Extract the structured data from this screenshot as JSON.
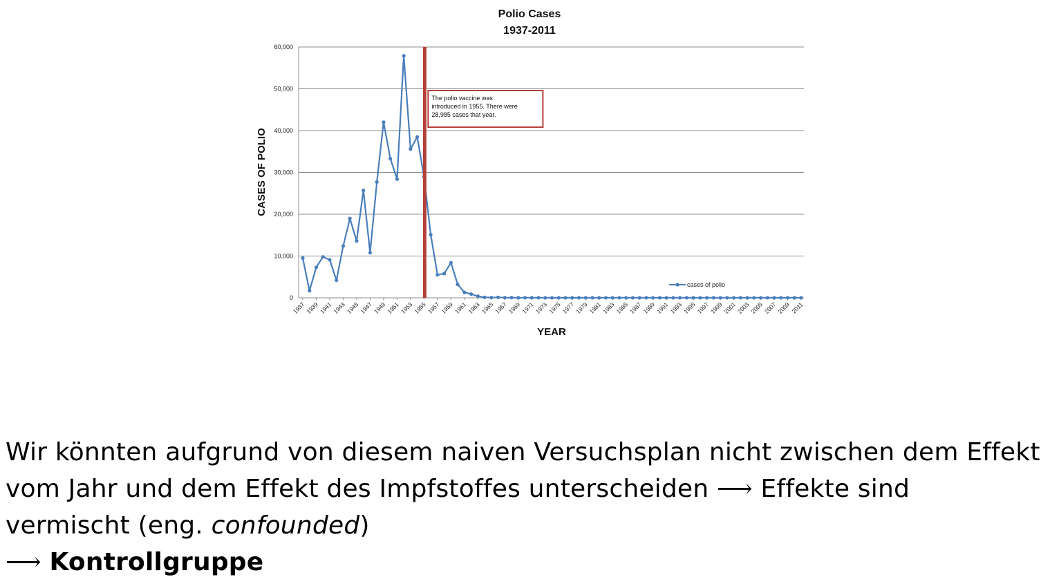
{
  "chart_data": {
    "type": "line",
    "title": "Polio Cases",
    "subtitle": "1937-2011",
    "xlabel": "YEAR",
    "ylabel": "CASES OF POLIO",
    "ylim": [
      0,
      60000
    ],
    "yticks": [
      "0",
      "10,000",
      "20,000",
      "30,000",
      "40,000",
      "50,000",
      "60,000"
    ],
    "grid": true,
    "legend": "cases of polio",
    "legend_position": "bottom-right",
    "series_color": "#4a7ebb",
    "marker_line_color": "#b5403a",
    "x": [
      1937,
      1938,
      1939,
      1940,
      1941,
      1942,
      1943,
      1944,
      1945,
      1946,
      1947,
      1948,
      1949,
      1950,
      1951,
      1952,
      1953,
      1954,
      1955,
      1956,
      1957,
      1958,
      1959,
      1960,
      1961,
      1962,
      1963,
      1964,
      1965,
      1966,
      1967,
      1968,
      1969,
      1970,
      1971,
      1972,
      1973,
      1974,
      1975,
      1976,
      1977,
      1978,
      1979,
      1980,
      1981,
      1982,
      1983,
      1984,
      1985,
      1986,
      1987,
      1988,
      1989,
      1990,
      1991,
      1992,
      1993,
      1994,
      1995,
      1996,
      1997,
      1998,
      1999,
      2000,
      2001,
      2002,
      2003,
      2004,
      2005,
      2006,
      2007,
      2008,
      2009,
      2010,
      2011
    ],
    "xtick_labels": [
      "1937",
      "1939",
      "1941",
      "1943",
      "1945",
      "1947",
      "1949",
      "1951",
      "1953",
      "1955",
      "1957",
      "1959",
      "1961",
      "1963",
      "1965",
      "1967",
      "1969",
      "1971",
      "1973",
      "1975",
      "1977",
      "1979",
      "1981",
      "1983",
      "1985",
      "1987",
      "1989",
      "1991",
      "1993",
      "1995",
      "1997",
      "1999",
      "2001",
      "2003",
      "2005",
      "2007",
      "2009",
      "2011"
    ],
    "series": [
      {
        "name": "cases of polio",
        "values": [
          9500,
          1700,
          7300,
          9800,
          9100,
          4200,
          12400,
          19000,
          13600,
          25700,
          10800,
          27700,
          42000,
          33300,
          28400,
          57900,
          35600,
          38500,
          29000,
          15100,
          5500,
          5800,
          8400,
          3200,
          1300,
          900,
          400,
          120,
          70,
          110,
          40,
          50,
          20,
          30,
          20,
          30,
          10,
          10,
          10,
          10,
          10,
          10,
          10,
          10,
          10,
          10,
          10,
          10,
          10,
          10,
          10,
          10,
          10,
          10,
          10,
          10,
          10,
          10,
          10,
          10,
          10,
          10,
          10,
          10,
          10,
          10,
          10,
          10,
          10,
          10,
          10,
          10,
          10,
          10,
          10
        ]
      }
    ],
    "annotation": {
      "lines": [
        "The polio vaccine was",
        "introduced in 1955.  There were",
        "28,985  cases that year."
      ],
      "x": 1955
    }
  },
  "text": {
    "line1": "Wir könnten aufgrund von diesem naiven Versuchsplan nicht zwischen dem Effekt",
    "line2_a": "vom Jahr und dem Effekt des Impfstoffes unterscheiden ",
    "arrow": "⟶",
    "line2_b": " Effekte sind",
    "line3_a": "vermischt (eng. ",
    "line3_em": "confounded",
    "line3_b": ")",
    "line4_bold": "Kontrollgruppe"
  }
}
